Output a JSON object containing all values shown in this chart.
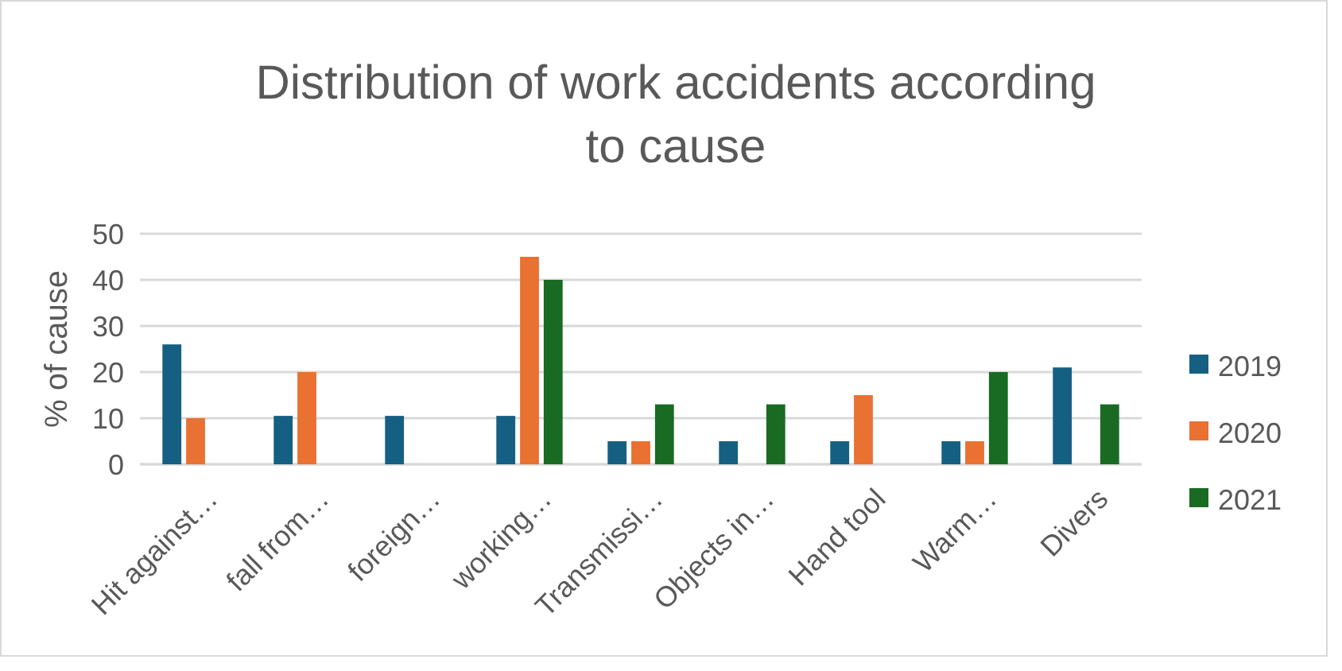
{
  "chart_data": {
    "type": "bar",
    "title": "Distribution of work accidents according to cause",
    "ylabel": "% of cause",
    "categories": [
      "Hit against…",
      "fall from…",
      "foreign…",
      "working…",
      "Transmissi…",
      "Objects in…",
      "Hand tool",
      "Warm…",
      "Divers"
    ],
    "series": [
      {
        "name": "2019",
        "color": "#156082",
        "values": [
          26,
          10.5,
          10.5,
          10.5,
          5,
          5,
          5,
          5,
          21
        ]
      },
      {
        "name": "2020",
        "color": "#e97132",
        "values": [
          10,
          20,
          null,
          45,
          5,
          null,
          15,
          5,
          null
        ]
      },
      {
        "name": "2021",
        "color": "#196b24",
        "values": [
          null,
          null,
          null,
          40,
          13,
          13,
          null,
          20,
          13
        ]
      }
    ],
    "ylim": [
      0,
      50
    ],
    "yticks": [
      0,
      10,
      20,
      30,
      40,
      50
    ],
    "grid": "y",
    "legend": "right"
  }
}
